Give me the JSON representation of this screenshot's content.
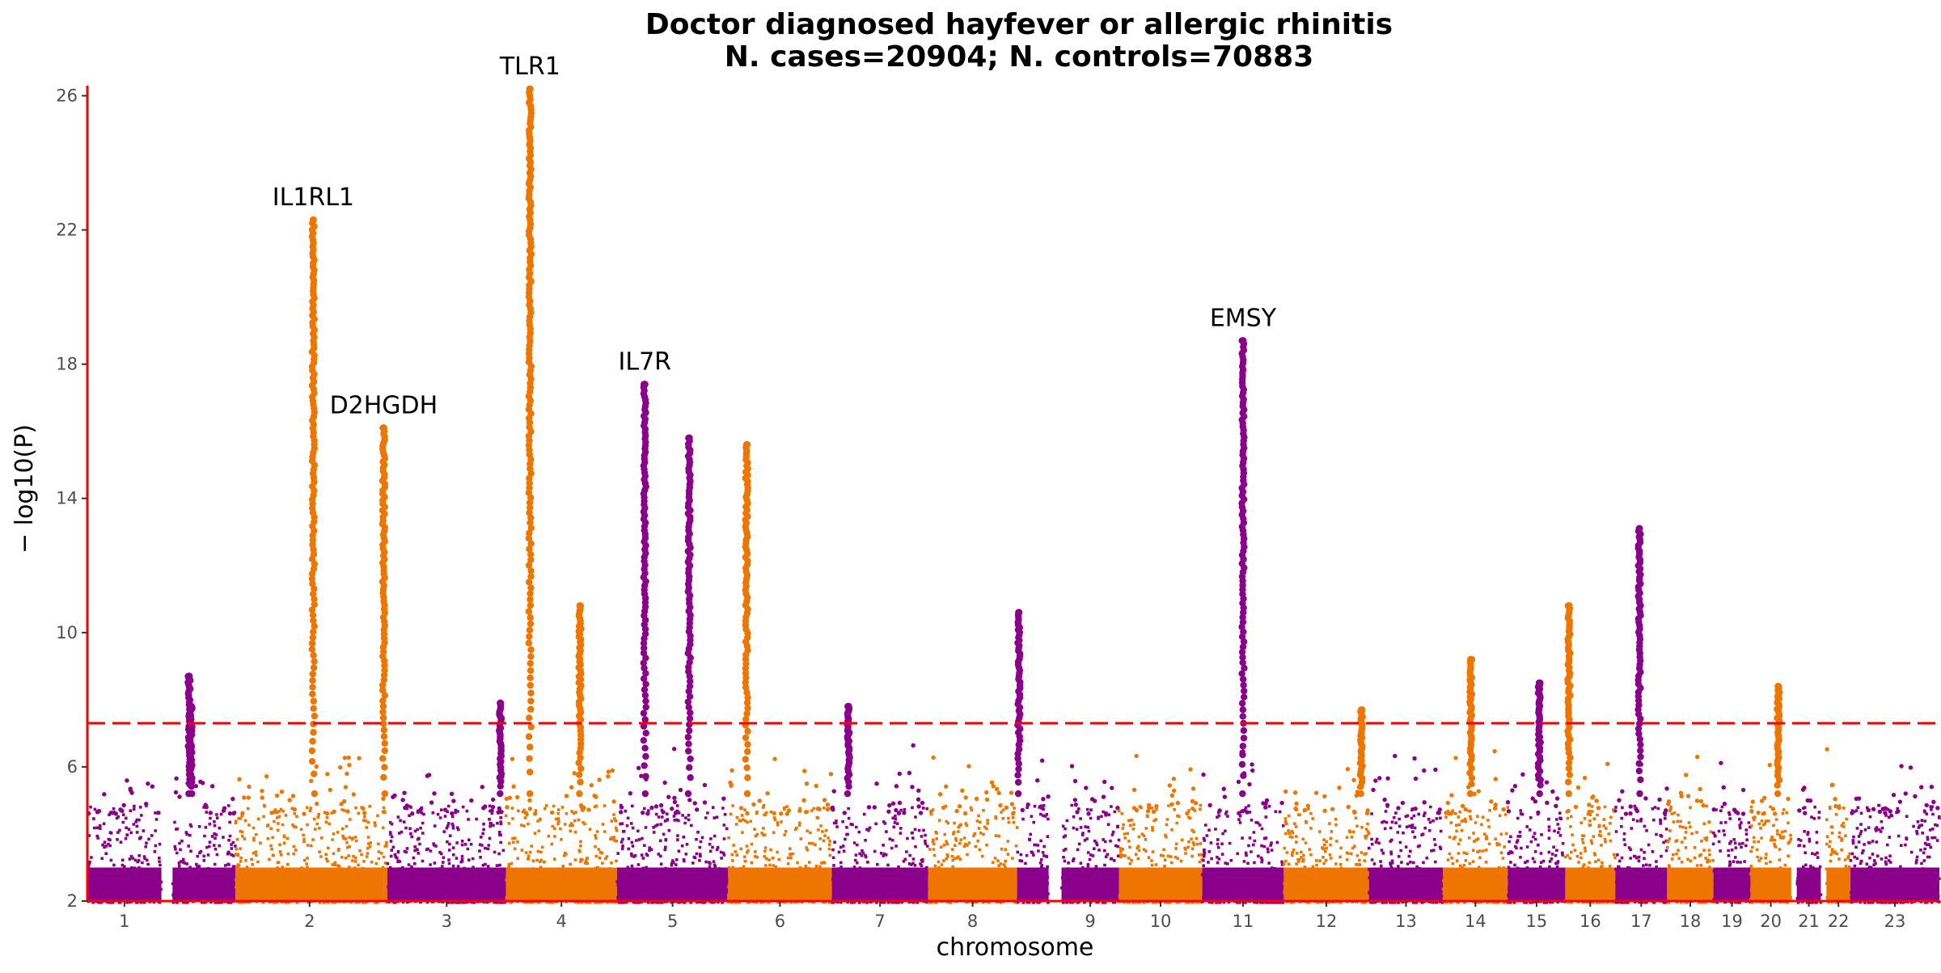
{
  "chart_data": {
    "type": "scatter",
    "subtype": "manhattan",
    "title": "Doctor diagnosed hayfever or allergic rhinitis",
    "subtitle": "N. cases=20904; N. controls=70883",
    "xlabel": "chromosome",
    "ylabel": "− log10(P)",
    "ylim": [
      2,
      26.3
    ],
    "y_ticks": [
      2,
      6,
      10,
      14,
      18,
      22,
      26
    ],
    "grid": false,
    "legend": "none",
    "significance_threshold": 7.3,
    "colors": {
      "odd_chromosomes": "#8b008b",
      "even_chromosomes": "#ee7600",
      "threshold_line": "#ff0000",
      "axis_line": "#ff0000"
    },
    "chromosomes": [
      {
        "label": "1",
        "color": "purple",
        "start": 0.0,
        "end": 4.0,
        "peaks": []
      },
      {
        "label": "",
        "color": "purple",
        "start": 4.6,
        "end": 8.0,
        "peaks": [
          {
            "x": 5.5,
            "y": 8.7
          },
          {
            "x": 5.6,
            "y": 7.8
          }
        ]
      },
      {
        "label": "2",
        "color": "orange",
        "start": 8.0,
        "end": 16.0,
        "peaks": [
          {
            "x": 12.2,
            "y": 22.3
          }
        ]
      },
      {
        "label": "",
        "color": "orange",
        "start": 16.0,
        "end": 16.2,
        "peaks": [
          {
            "x": 16.0,
            "y": 16.1
          }
        ]
      },
      {
        "label": "3",
        "color": "purple",
        "start": 16.2,
        "end": 22.6,
        "peaks": [
          {
            "x": 22.3,
            "y": 7.9
          }
        ]
      },
      {
        "label": "4",
        "color": "orange",
        "start": 22.6,
        "end": 28.6,
        "peaks": [
          {
            "x": 23.9,
            "y": 26.2
          },
          {
            "x": 26.6,
            "y": 10.8
          }
        ]
      },
      {
        "label": "5",
        "color": "purple",
        "start": 28.6,
        "end": 34.6,
        "peaks": [
          {
            "x": 30.1,
            "y": 17.4
          },
          {
            "x": 32.5,
            "y": 15.8
          }
        ]
      },
      {
        "label": "6",
        "color": "orange",
        "start": 34.6,
        "end": 40.2,
        "peaks": [
          {
            "x": 35.6,
            "y": 15.6
          }
        ]
      },
      {
        "label": "7",
        "color": "purple",
        "start": 40.2,
        "end": 45.4,
        "peaks": [
          {
            "x": 41.1,
            "y": 7.8
          }
        ]
      },
      {
        "label": "8",
        "color": "orange",
        "start": 45.4,
        "end": 50.2,
        "peaks": []
      },
      {
        "label": "",
        "color": "purple",
        "start": 50.2,
        "end": 51.9,
        "peaks": [
          {
            "x": 50.3,
            "y": 10.6
          }
        ]
      },
      {
        "label": "9",
        "color": "purple",
        "start": 52.6,
        "end": 55.7,
        "peaks": []
      },
      {
        "label": "10",
        "color": "orange",
        "start": 55.7,
        "end": 60.2,
        "peaks": []
      },
      {
        "label": "11",
        "color": "purple",
        "start": 60.2,
        "end": 64.6,
        "peaks": [
          {
            "x": 62.4,
            "y": 18.7
          }
        ]
      },
      {
        "label": "12",
        "color": "orange",
        "start": 64.6,
        "end": 69.2,
        "peaks": [
          {
            "x": 68.8,
            "y": 7.7
          }
        ]
      },
      {
        "label": "13",
        "color": "purple",
        "start": 69.2,
        "end": 73.2,
        "peaks": []
      },
      {
        "label": "14",
        "color": "orange",
        "start": 73.2,
        "end": 76.7,
        "peaks": [
          {
            "x": 74.7,
            "y": 9.2
          }
        ]
      },
      {
        "label": "15",
        "color": "purple",
        "start": 76.7,
        "end": 79.8,
        "peaks": [
          {
            "x": 78.4,
            "y": 8.5
          }
        ]
      },
      {
        "label": "16",
        "color": "orange",
        "start": 79.8,
        "end": 82.5,
        "peaks": [
          {
            "x": 80.0,
            "y": 10.8
          }
        ]
      },
      {
        "label": "17",
        "color": "purple",
        "start": 82.5,
        "end": 85.3,
        "peaks": [
          {
            "x": 83.8,
            "y": 13.1
          }
        ]
      },
      {
        "label": "18",
        "color": "orange",
        "start": 85.3,
        "end": 87.8,
        "peaks": []
      },
      {
        "label": "19",
        "color": "purple",
        "start": 87.8,
        "end": 89.8,
        "peaks": []
      },
      {
        "label": "20",
        "color": "orange",
        "start": 89.8,
        "end": 92.0,
        "peaks": [
          {
            "x": 91.3,
            "y": 8.4
          }
        ]
      },
      {
        "label": "21",
        "color": "purple",
        "start": 92.3,
        "end": 93.6,
        "peaks": []
      },
      {
        "label": "22",
        "color": "orange",
        "start": 93.9,
        "end": 95.2,
        "peaks": []
      },
      {
        "label": "23",
        "color": "purple",
        "start": 95.2,
        "end": 100.0,
        "peaks": []
      }
    ],
    "annotations": [
      {
        "text": "IL1RL1",
        "x": 12.2,
        "y": 22.3
      },
      {
        "text": "D2HGDH",
        "x": 16.0,
        "y": 16.1
      },
      {
        "text": "TLR1",
        "x": 23.9,
        "y": 26.2
      },
      {
        "text": "IL7R",
        "x": 30.1,
        "y": 17.4
      },
      {
        "text": "EMSY",
        "x": 62.4,
        "y": 18.7
      }
    ]
  }
}
